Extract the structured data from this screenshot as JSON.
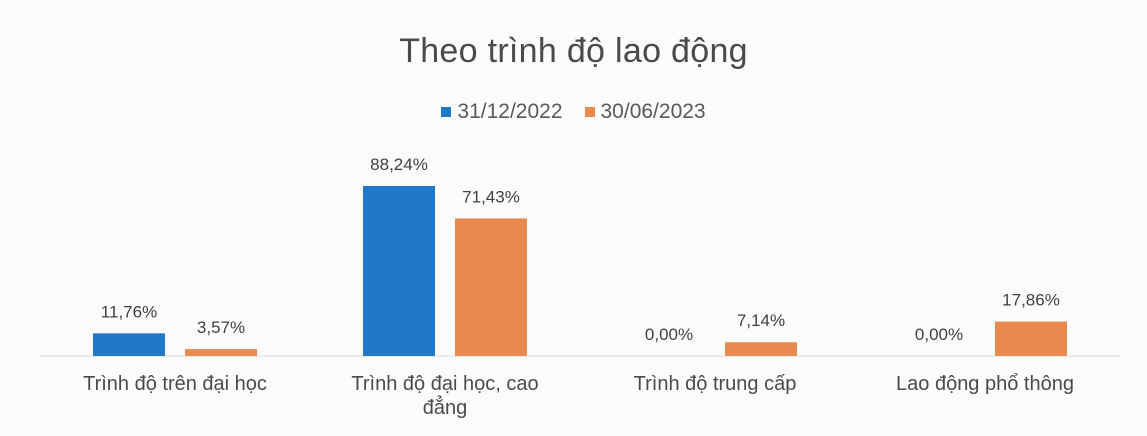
{
  "chart_data": {
    "type": "bar",
    "title": "Theo trình độ lao động",
    "categories": [
      [
        "Trình độ trên đại học"
      ],
      [
        "Trình độ đại học, cao",
        "đẳng"
      ],
      [
        "Trình độ trung cấp"
      ],
      [
        "Lao động phổ thông"
      ]
    ],
    "series": [
      {
        "name": "31/12/2022",
        "color": "#1f78c8",
        "values": [
          11.76,
          88.24,
          0.0,
          0.0
        ],
        "labels": [
          "11,76%",
          "88,24%",
          "0,00%",
          "0,00%"
        ]
      },
      {
        "name": "30/06/2023",
        "color": "#e8894f",
        "values": [
          3.57,
          71.43,
          7.14,
          17.86
        ],
        "labels": [
          "3,57%",
          "71,43%",
          "7,14%",
          "17,86%"
        ]
      }
    ],
    "legend_position": "top",
    "grid": false,
    "ylim": [
      0,
      88.24
    ]
  }
}
